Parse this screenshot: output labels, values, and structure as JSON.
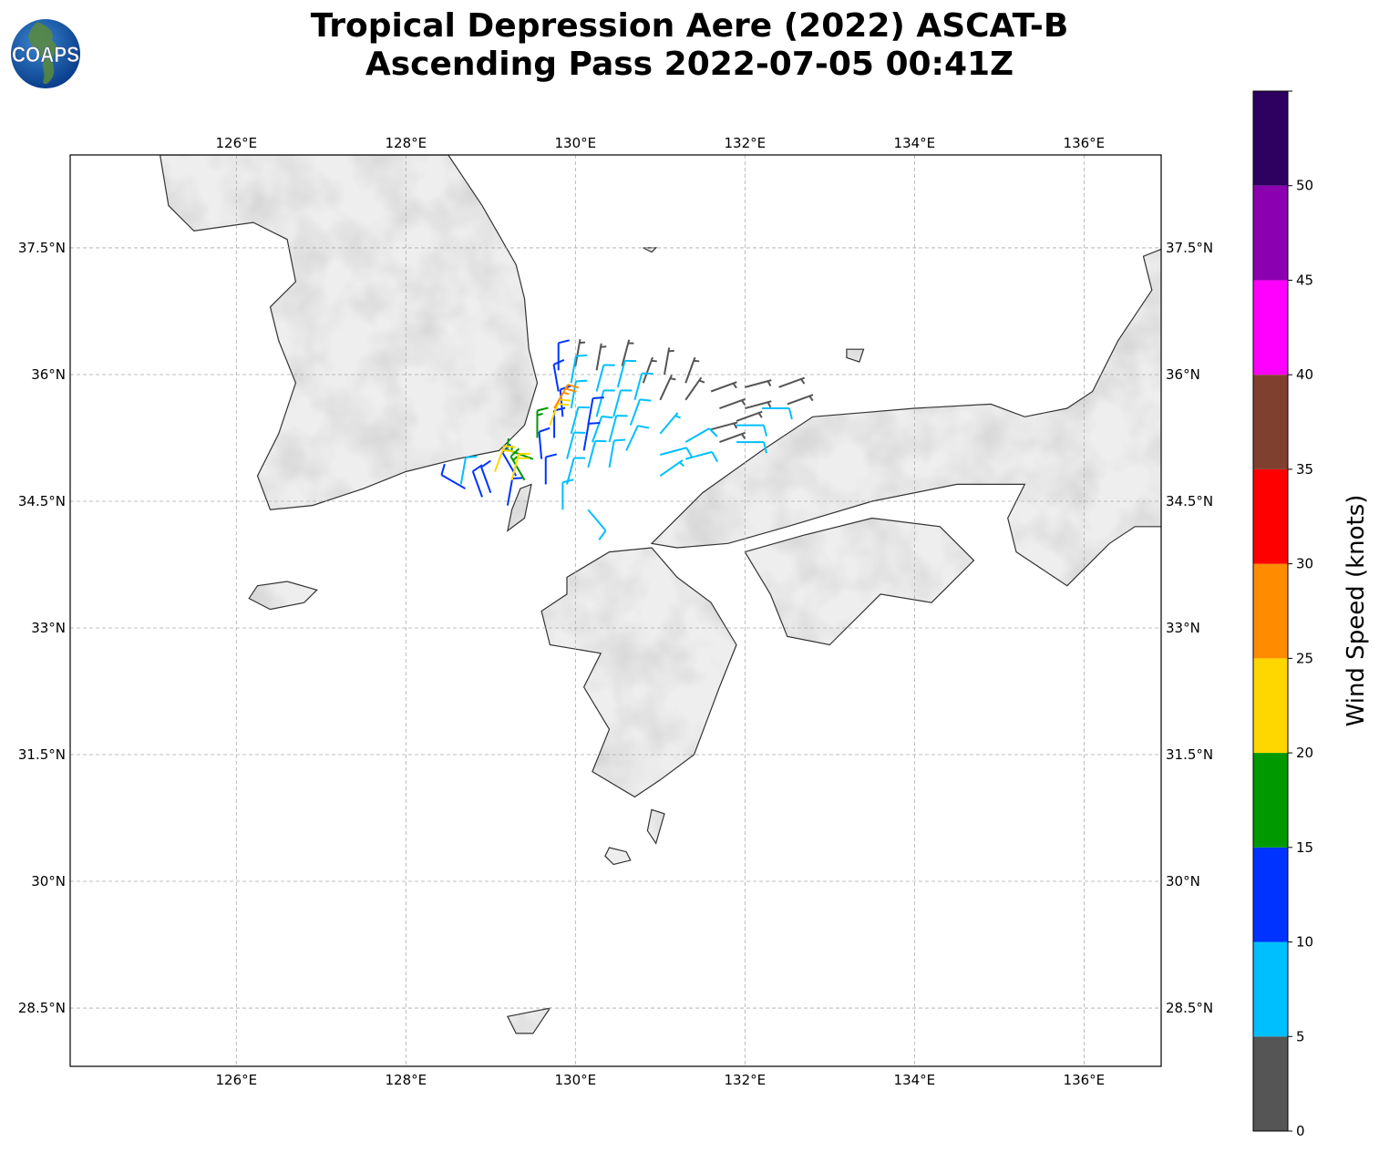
{
  "title": {
    "line1": "Tropical Depression Aere (2022) ASCAT-B",
    "line2": "Ascending Pass 2022-07-05 00:41Z"
  },
  "logo": {
    "text": "COAPS"
  },
  "map": {
    "lon_range": [
      124.04,
      136.91
    ],
    "lat_range": [
      27.81,
      38.6
    ],
    "lon_ticks": [
      "126°E",
      "128°E",
      "130°E",
      "132°E",
      "134°E",
      "136°E"
    ],
    "lon_tick_values": [
      126,
      128,
      130,
      132,
      134,
      136
    ],
    "lat_ticks": [
      "28.5°N",
      "30°N",
      "31.5°N",
      "33°N",
      "34.5°N",
      "36°N",
      "37.5°N"
    ],
    "lat_tick_values": [
      28.5,
      30,
      31.5,
      33,
      34.5,
      36,
      37.5
    ],
    "grid": true,
    "land_color": "#eeeeee",
    "coast_color": "#333333"
  },
  "colorbar": {
    "label": "Wind Speed (knots)",
    "ticks": [
      "0",
      "5",
      "10",
      "15",
      "20",
      "25",
      "30",
      "35",
      "40",
      "45",
      "50"
    ],
    "max": 55,
    "bins": [
      {
        "from": 0,
        "to": 5,
        "color": "#555555"
      },
      {
        "from": 5,
        "to": 10,
        "color": "#00bfff"
      },
      {
        "from": 10,
        "to": 15,
        "color": "#0033ff"
      },
      {
        "from": 15,
        "to": 20,
        "color": "#009900"
      },
      {
        "from": 20,
        "to": 25,
        "color": "#ffd700"
      },
      {
        "from": 25,
        "to": 30,
        "color": "#ff8c00"
      },
      {
        "from": 30,
        "to": 35,
        "color": "#ff0000"
      },
      {
        "from": 35,
        "to": 40,
        "color": "#804030"
      },
      {
        "from": 40,
        "to": 45,
        "color": "#ff00ff"
      },
      {
        "from": 45,
        "to": 50,
        "color": "#8b00b0"
      },
      {
        "from": 50,
        "to": 55,
        "color": "#2e0060"
      }
    ]
  },
  "chart_data": {
    "type": "scatter",
    "description_fields": [
      "lon",
      "lat",
      "speed_kt",
      "direction_from_deg"
    ],
    "barbs": [
      [
        130.0,
        36.1,
        4,
        10
      ],
      [
        130.25,
        36.05,
        4,
        10
      ],
      [
        130.55,
        36.1,
        4,
        15
      ],
      [
        130.8,
        35.9,
        4,
        20
      ],
      [
        131.05,
        36.0,
        4,
        10
      ],
      [
        131.3,
        35.9,
        4,
        20
      ],
      [
        131.0,
        35.7,
        4,
        25
      ],
      [
        131.3,
        35.7,
        4,
        35
      ],
      [
        131.6,
        35.8,
        4,
        70
      ],
      [
        132.0,
        35.85,
        4,
        75
      ],
      [
        132.4,
        35.85,
        4,
        70
      ],
      [
        131.7,
        35.6,
        4,
        70
      ],
      [
        132.0,
        35.6,
        4,
        75
      ],
      [
        132.5,
        35.65,
        4,
        70
      ],
      [
        131.6,
        35.35,
        4,
        75
      ],
      [
        131.9,
        35.45,
        4,
        70
      ],
      [
        131.7,
        35.2,
        4,
        70
      ],
      [
        129.95,
        35.9,
        8,
        10
      ],
      [
        129.95,
        35.6,
        8,
        10
      ],
      [
        129.95,
        35.3,
        8,
        15
      ],
      [
        129.9,
        35.0,
        8,
        15
      ],
      [
        129.9,
        34.7,
        8,
        15
      ],
      [
        130.25,
        35.8,
        8,
        15
      ],
      [
        130.25,
        35.5,
        8,
        15
      ],
      [
        130.2,
        35.2,
        8,
        20
      ],
      [
        130.15,
        34.9,
        8,
        15
      ],
      [
        130.5,
        35.85,
        8,
        15
      ],
      [
        130.45,
        35.5,
        8,
        15
      ],
      [
        130.4,
        35.2,
        8,
        15
      ],
      [
        130.4,
        34.9,
        8,
        10
      ],
      [
        130.7,
        35.7,
        8,
        15
      ],
      [
        130.65,
        35.4,
        8,
        20
      ],
      [
        130.6,
        35.1,
        8,
        25
      ],
      [
        131.0,
        35.3,
        7,
        40
      ],
      [
        131.3,
        35.2,
        8,
        60
      ],
      [
        131.0,
        35.05,
        8,
        75
      ],
      [
        131.3,
        35.0,
        8,
        75
      ],
      [
        131.0,
        34.8,
        7,
        55
      ],
      [
        131.9,
        35.4,
        8,
        90
      ],
      [
        132.2,
        35.6,
        8,
        90
      ],
      [
        131.9,
        35.2,
        8,
        90
      ],
      [
        130.15,
        34.4,
        8,
        140
      ],
      [
        129.85,
        34.4,
        8,
        0
      ],
      [
        128.65,
        34.7,
        8,
        10
      ],
      [
        129.8,
        36.05,
        12,
        0
      ],
      [
        129.8,
        35.8,
        12,
        350
      ],
      [
        129.85,
        35.5,
        12,
        355
      ],
      [
        129.75,
        35.25,
        12,
        0
      ],
      [
        129.6,
        35.0,
        12,
        355
      ],
      [
        129.65,
        34.7,
        12,
        0
      ],
      [
        130.15,
        35.4,
        12,
        10
      ],
      [
        130.1,
        35.1,
        12,
        10
      ],
      [
        129.3,
        34.8,
        12,
        330
      ],
      [
        128.9,
        34.55,
        12,
        340
      ],
      [
        128.7,
        34.65,
        12,
        300
      ],
      [
        129.0,
        34.6,
        12,
        340
      ],
      [
        129.2,
        34.45,
        12,
        10
      ],
      [
        129.5,
        35.0,
        17,
        290
      ],
      [
        129.55,
        35.25,
        17,
        0
      ],
      [
        129.4,
        34.75,
        17,
        330
      ],
      [
        129.05,
        34.85,
        22,
        20
      ],
      [
        129.25,
        34.75,
        22,
        15
      ],
      [
        129.7,
        35.4,
        22,
        20
      ],
      [
        129.75,
        35.6,
        27,
        30
      ]
    ]
  }
}
